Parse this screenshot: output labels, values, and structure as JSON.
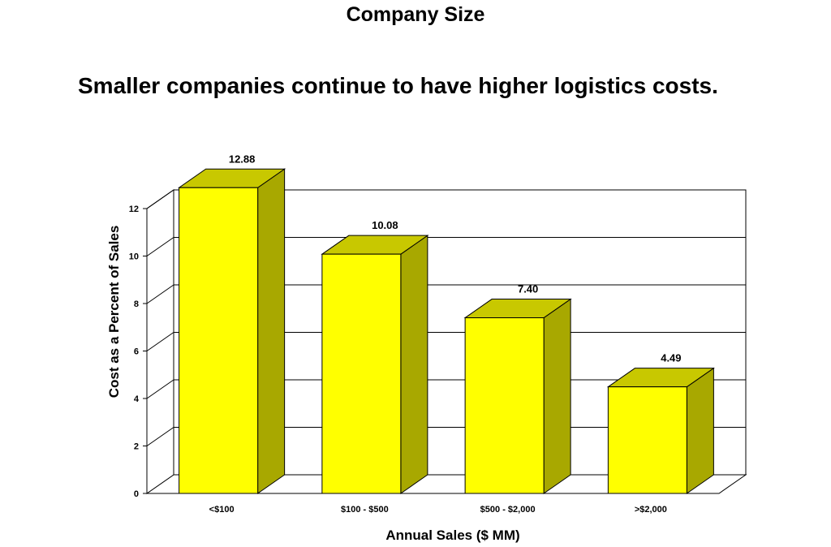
{
  "header": {
    "title": "Company Size",
    "headline": "Smaller companies continue to have higher logistics costs."
  },
  "chart_data": {
    "type": "bar",
    "categories": [
      "<$100",
      "$100 - $500",
      "$500 - $2,000",
      ">$2,000"
    ],
    "values": [
      12.88,
      10.08,
      7.4,
      4.49
    ],
    "data_labels": [
      "12.88",
      "10.08",
      "7.40",
      "4.49"
    ],
    "xlabel": "Annual Sales ($ MM)",
    "ylabel": "Cost as a Percent of Sales",
    "ylim": [
      0,
      12
    ],
    "yticks": [
      "0",
      "2",
      "4",
      "6",
      "8",
      "10",
      "12"
    ],
    "grid": true,
    "legend": "none",
    "style": "3d-column",
    "colors": {
      "bar_front": "#ffff00",
      "bar_side": "#a8a800",
      "bar_top": "#c8c800",
      "axis": "#000000",
      "grid": "#000000"
    }
  }
}
